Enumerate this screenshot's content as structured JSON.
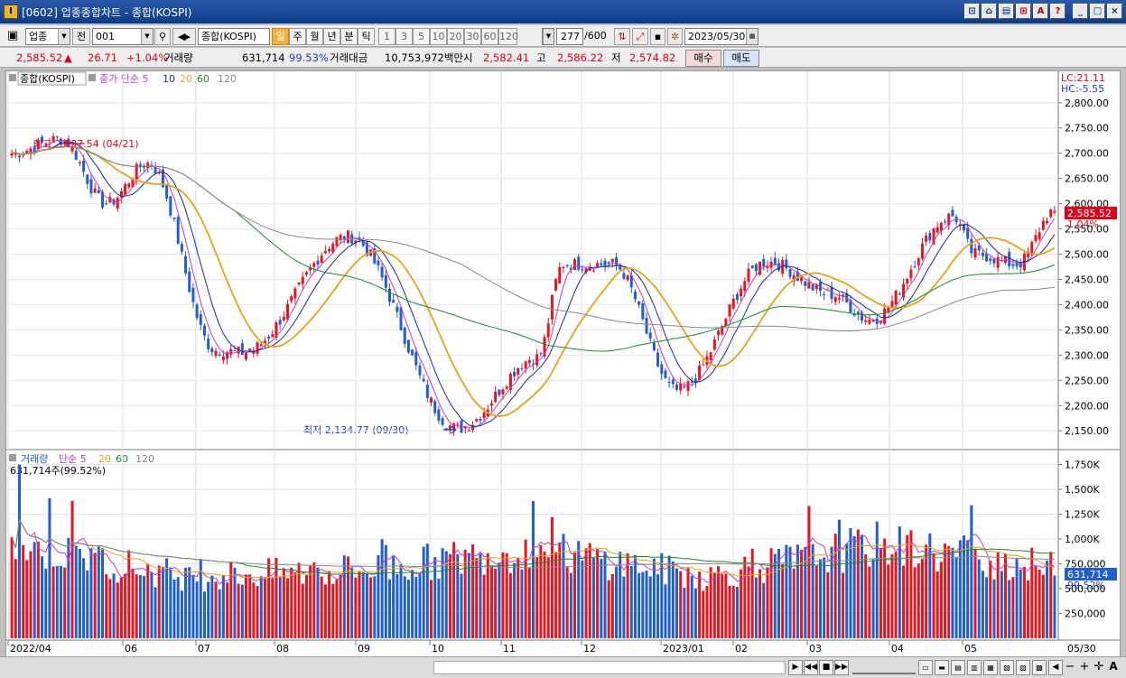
{
  "window": {
    "title": "[0602] 업종종합차트 - 종합(KOSPI)",
    "buttons": [
      "layout-icon",
      "chart-icon",
      "window-icon",
      "pin-icon",
      "font-icon",
      "help-icon",
      "minimize-icon",
      "maximize-icon",
      "close-icon"
    ],
    "button_glyphs": [
      "⊡",
      "⌂",
      "▤",
      "⊞",
      "A",
      "?",
      "_",
      "□",
      "×"
    ]
  },
  "toolbar": {
    "market_select": "업종",
    "prev_label": "전",
    "code_value": "001",
    "name_value": "종합(KOSPI)",
    "periods": [
      "일",
      "주",
      "월",
      "년",
      "분",
      "틱"
    ],
    "active_period": "일",
    "intervals": [
      "1",
      "3",
      "5",
      "10",
      "20",
      "30",
      "60",
      "120"
    ],
    "count_value": "277",
    "count_total": "/600",
    "date_value": "2023/05/30"
  },
  "quote": {
    "price": "2,585.52",
    "change_arrow": "▲",
    "change": "26.71",
    "change_pct": "+1.04%",
    "volume_label": "거래량",
    "volume": "631,714",
    "volume_ratio": "99.53%",
    "amount_label": "거래대금",
    "amount": "10,753,972백만",
    "open_label": "시",
    "open": "2,582.41",
    "high_label": "고",
    "high": "2,586.22",
    "low_label": "저",
    "low": "2,574.82",
    "buy_label": "매수",
    "sell_label": "매도"
  },
  "price_panel": {
    "legend_name": "종합(KOSPI)",
    "legend_ma": "종가 단순 5",
    "legend_periods": [
      "10",
      "20",
      "60",
      "120"
    ],
    "lc_label": "LC:21.11",
    "hc_label": "HC:-5.55",
    "high_marker": "최고 2,737.54 (04/21)",
    "low_marker": "최저 2,134.77 (09/30)",
    "last_price_tag": "2,585.52",
    "last_pct_tag": "1.04%",
    "y_ticks": [
      "2,800.00",
      "2,750.00",
      "2,700.00",
      "2,650.00",
      "2,600.00",
      "2,550.00",
      "2,500.00",
      "2,450.00",
      "2,400.00",
      "2,350.00",
      "2,300.00",
      "2,250.00",
      "2,200.00",
      "2,150.00"
    ]
  },
  "volume_panel": {
    "legend_name": "거래량",
    "legend_ma": "단순 5",
    "legend_periods": [
      "20",
      "60",
      "120"
    ],
    "current_label": "631,714주(99.52%)",
    "last_tag": "631,714",
    "last_pct_tag": "99.52%",
    "y_ticks": [
      "1,750K",
      "1,500K",
      "1,250K",
      "1,000K",
      "750,000",
      "500,000",
      "250,000"
    ]
  },
  "x_axis": {
    "labels": [
      "2022/04",
      "06",
      "07",
      "08",
      "09",
      "10",
      "11",
      "12",
      "2023/01",
      "02",
      "03",
      "04",
      "05"
    ],
    "last_label": "05/30"
  },
  "colors": {
    "up": "#e8141e",
    "down": "#1f5fd0",
    "ma5": "#c23ad0",
    "ma10": "#1a2a9a",
    "ma20": "#e8a21a",
    "ma60": "#1a8a2a",
    "ma120": "#888888"
  },
  "chart_data": {
    "type": "candlestick",
    "title": "종합(KOSPI)",
    "ylim": [
      2120,
      2830
    ],
    "volume_ylim": [
      0,
      1800
    ],
    "volume_unit": "K",
    "keypoints": [
      {
        "date": "2022/04/01",
        "close": 2700
      },
      {
        "date": "2022/04/21",
        "close": 2728
      },
      {
        "date": "2022/05/10",
        "close": 2600
      },
      {
        "date": "2022/05/27",
        "close": 2680
      },
      {
        "date": "2022/06/23",
        "close": 2310
      },
      {
        "date": "2022/07/04",
        "close": 2305
      },
      {
        "date": "2022/08/16",
        "close": 2535
      },
      {
        "date": "2022/09/30",
        "close": 2155
      },
      {
        "date": "2022/10/31",
        "close": 2295
      },
      {
        "date": "2022/11/11",
        "close": 2480
      },
      {
        "date": "2022/12/01",
        "close": 2480
      },
      {
        "date": "2022/12/28",
        "close": 2230
      },
      {
        "date": "2023/02/02",
        "close": 2485
      },
      {
        "date": "2023/02/28",
        "close": 2420
      },
      {
        "date": "2023/03/16",
        "close": 2370
      },
      {
        "date": "2023/04/18",
        "close": 2575
      },
      {
        "date": "2023/04/28",
        "close": 2500
      },
      {
        "date": "2023/05/15",
        "close": 2480
      },
      {
        "date": "2023/05/30",
        "close": 2585.52
      }
    ],
    "high": {
      "date": "2022/04/21",
      "value": 2737.54
    },
    "low": {
      "date": "2022/09/30",
      "value": 2134.77
    },
    "last": {
      "date": "2023/05/30",
      "open": 2582.41,
      "high": 2586.22,
      "low": 2574.82,
      "close": 2585.52,
      "volume": 631714
    },
    "volume_keypoints": [
      {
        "date": "2022/04",
        "volume": 950
      },
      {
        "date": "2022/07",
        "volume": 620
      },
      {
        "date": "2022/09",
        "volume": 680
      },
      {
        "date": "2022/10",
        "volume": 900
      },
      {
        "date": "2023/01",
        "volume": 620
      },
      {
        "date": "2023/04",
        "volume": 950
      },
      {
        "date": "2023/05",
        "volume": 700
      }
    ],
    "moving_averages": [
      "5",
      "10",
      "20",
      "60",
      "120"
    ]
  }
}
